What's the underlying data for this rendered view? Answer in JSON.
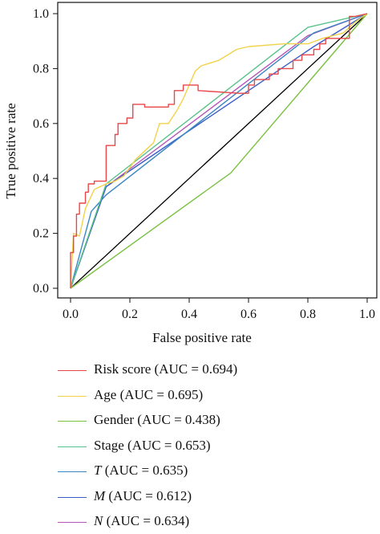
{
  "chart_data": {
    "type": "line",
    "title": "",
    "xlabel": "False positive rate",
    "ylabel": "True positive rate",
    "xlim": [
      0,
      1
    ],
    "ylim": [
      0,
      1
    ],
    "xticks": [
      "0.0",
      "0.2",
      "0.4",
      "0.6",
      "0.8",
      "1.0"
    ],
    "yticks": [
      "0.0",
      "0.2",
      "0.4",
      "0.6",
      "0.8",
      "1.0"
    ],
    "grid": false,
    "legend_position": "bottom",
    "diagonal": {
      "x": [
        0,
        1
      ],
      "y": [
        0,
        1
      ],
      "color": "#000000"
    },
    "series": [
      {
        "name": "Risk score",
        "label": "Risk score (AUC = 0.694)",
        "color": "#e8474a",
        "x": [
          0,
          0,
          0.01,
          0.01,
          0.02,
          0.02,
          0.03,
          0.03,
          0.05,
          0.05,
          0.06,
          0.06,
          0.08,
          0.08,
          0.11,
          0.12,
          0.12,
          0.15,
          0.15,
          0.16,
          0.16,
          0.19,
          0.19,
          0.21,
          0.21,
          0.25,
          0.25,
          0.33,
          0.33,
          0.35,
          0.35,
          0.38,
          0.38,
          0.43,
          0.43,
          0.57,
          0.6,
          0.6,
          0.62,
          0.62,
          0.67,
          0.67,
          0.7,
          0.7,
          0.75,
          0.75,
          0.78,
          0.78,
          0.82,
          0.82,
          0.84,
          0.84,
          0.86,
          0.86,
          0.94,
          0.94,
          0.96,
          1
        ],
        "y": [
          0,
          0.13,
          0.13,
          0.19,
          0.19,
          0.27,
          0.27,
          0.31,
          0.31,
          0.35,
          0.35,
          0.38,
          0.38,
          0.39,
          0.39,
          0.39,
          0.52,
          0.52,
          0.56,
          0.56,
          0.6,
          0.6,
          0.62,
          0.62,
          0.67,
          0.67,
          0.66,
          0.66,
          0.67,
          0.67,
          0.72,
          0.72,
          0.74,
          0.74,
          0.72,
          0.71,
          0.71,
          0.74,
          0.74,
          0.76,
          0.76,
          0.78,
          0.78,
          0.8,
          0.8,
          0.83,
          0.83,
          0.85,
          0.85,
          0.87,
          0.87,
          0.89,
          0.89,
          0.91,
          0.91,
          0.99,
          0.99,
          1
        ]
      },
      {
        "name": "Age",
        "label": "Age (AUC = 0.695)",
        "color": "#f2d24a",
        "x": [
          0,
          0.01,
          0.03,
          0.05,
          0.08,
          0.12,
          0.15,
          0.18,
          0.22,
          0.28,
          0.3,
          0.33,
          0.36,
          0.38,
          0.42,
          0.44,
          0.5,
          0.56,
          0.6,
          0.72,
          0.8,
          0.85,
          0.92,
          0.96,
          1
        ],
        "y": [
          0,
          0.2,
          0.19,
          0.29,
          0.36,
          0.38,
          0.39,
          0.41,
          0.47,
          0.53,
          0.6,
          0.6,
          0.65,
          0.69,
          0.79,
          0.81,
          0.83,
          0.87,
          0.88,
          0.89,
          0.89,
          0.91,
          0.93,
          0.97,
          1
        ]
      },
      {
        "name": "Gender",
        "label": "Gender (AUC = 0.438)",
        "color": "#7ac141",
        "x": [
          0,
          0.54,
          1
        ],
        "y": [
          0,
          0.42,
          1
        ]
      },
      {
        "name": "Stage",
        "label": "Stage (AUC = 0.653)",
        "color": "#57c28a",
        "x": [
          0,
          0.12,
          0.8,
          1
        ],
        "y": [
          0,
          0.38,
          0.95,
          1
        ]
      },
      {
        "name": "T",
        "label": "T (AUC = 0.635)",
        "color": "#3a86c2",
        "x": [
          0,
          0.07,
          0.12,
          0.82,
          1
        ],
        "y": [
          0,
          0.28,
          0.34,
          0.93,
          1
        ]
      },
      {
        "name": "M",
        "label": "M (AUC = 0.612)",
        "color": "#3b5fc8",
        "x": [
          0,
          0.12,
          0.82,
          1
        ],
        "y": [
          0,
          0.37,
          0.88,
          1
        ]
      },
      {
        "name": "N",
        "label": "N (AUC = 0.634)",
        "color": "#b456b8",
        "x": [
          0,
          0.12,
          0.8,
          1
        ],
        "y": [
          0,
          0.37,
          0.92,
          1
        ]
      }
    ]
  },
  "legend": [
    {
      "prefix": "Risk score",
      "suffix": " (AUC = 0.694)",
      "italic": false,
      "color": "#e8474a"
    },
    {
      "prefix": "Age",
      "suffix": " (AUC = 0.695)",
      "italic": false,
      "color": "#f2d24a"
    },
    {
      "prefix": "Gender",
      "suffix": " (AUC = 0.438)",
      "italic": false,
      "color": "#7ac141"
    },
    {
      "prefix": "Stage",
      "suffix": " (AUC = 0.653)",
      "italic": false,
      "color": "#57c28a"
    },
    {
      "prefix": "T",
      "suffix": " (AUC = 0.635)",
      "italic": true,
      "color": "#3a86c2"
    },
    {
      "prefix": "M",
      "suffix": " (AUC = 0.612)",
      "italic": true,
      "color": "#3b5fc8"
    },
    {
      "prefix": "N",
      "suffix": " (AUC = 0.634)",
      "italic": true,
      "color": "#b456b8"
    }
  ]
}
